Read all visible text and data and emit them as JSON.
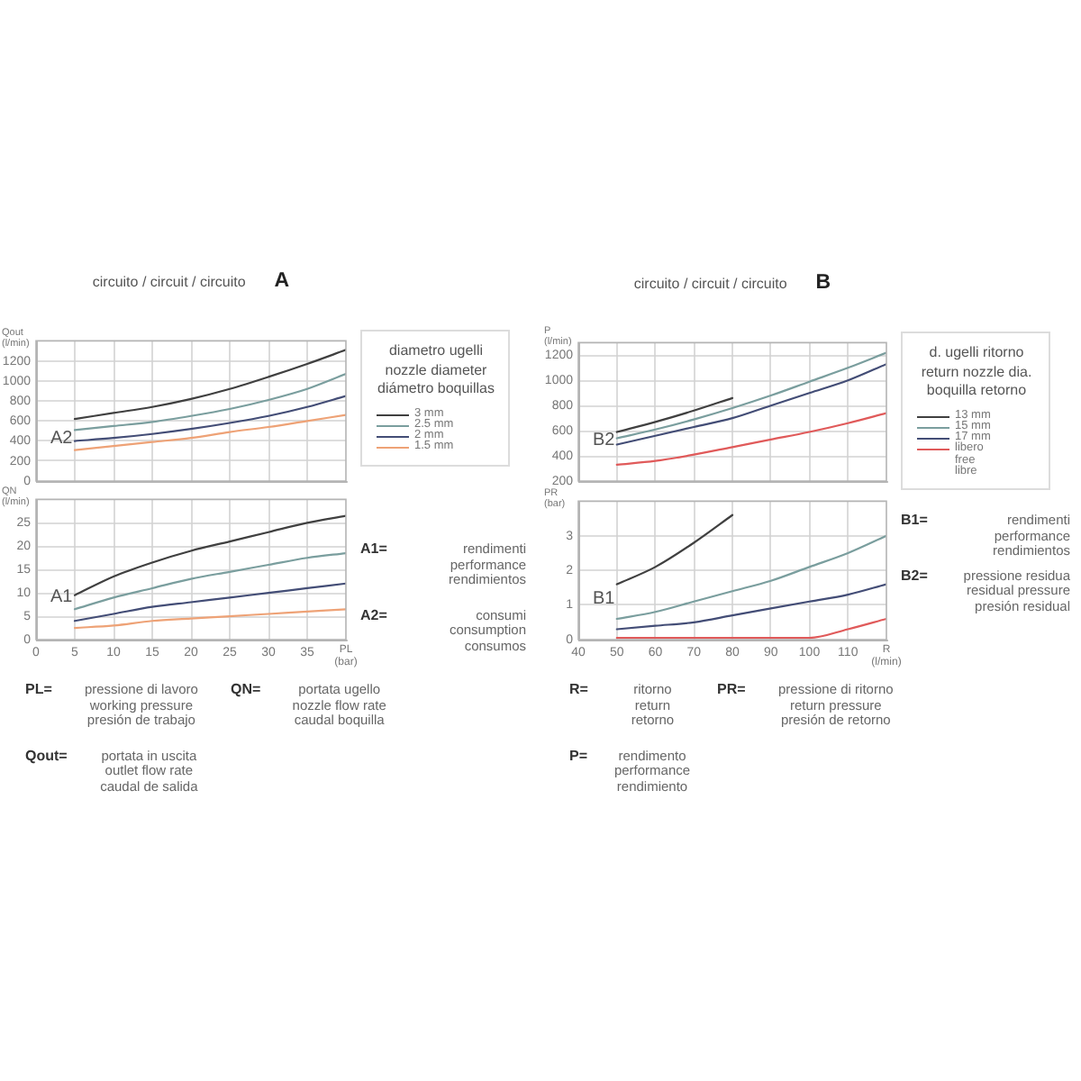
{
  "chart_data": [
    {
      "type": "line",
      "title": "circuito / circuit / circuito",
      "subtitle": "A",
      "ylabel": "Qout (l/min)",
      "legend_title": "diametro ugelli\nnozzle diameter\ndiámetro boquillas",
      "annotations": [
        "A2"
      ],
      "x": [
        5,
        10,
        15,
        20,
        25,
        30,
        35,
        40
      ],
      "series": [
        {
          "name": "3 mm",
          "color": "#404040",
          "values": [
            620,
            680,
            740,
            820,
            920,
            1040,
            1170,
            1310
          ]
        },
        {
          "name": "2.5 mm",
          "color": "#7a9e9e",
          "values": [
            510,
            550,
            590,
            650,
            720,
            810,
            920,
            1070
          ]
        },
        {
          "name": "2 mm",
          "color": "#434d76",
          "values": [
            400,
            430,
            470,
            520,
            580,
            650,
            740,
            850
          ]
        },
        {
          "name": "1.5 mm",
          "color": "#eea276",
          "values": [
            310,
            350,
            390,
            430,
            490,
            540,
            600,
            660
          ]
        }
      ],
      "xlim": [
        0,
        40
      ],
      "ylim": [
        0,
        1400
      ],
      "xticks": [
        0,
        5,
        10,
        15,
        20,
        25,
        30,
        35
      ],
      "yticks": [
        0,
        200,
        400,
        600,
        800,
        1000,
        1200
      ],
      "tick_labels": "y",
      "grid": true,
      "legend": "right"
    },
    {
      "type": "line",
      "xlabel": "PL (bar)",
      "ylabel": "QN (l/min)",
      "annotations": [
        "A1"
      ],
      "x": [
        5,
        10,
        15,
        20,
        25,
        30,
        35,
        40
      ],
      "series": [
        {
          "color": "#404040",
          "values": [
            9.5,
            13.5,
            16.5,
            19,
            21,
            23,
            25,
            26.5
          ]
        },
        {
          "color": "#7a9e9e",
          "values": [
            6.5,
            9,
            11,
            13,
            14.5,
            16,
            17.5,
            18.5
          ]
        },
        {
          "color": "#434d76",
          "values": [
            4,
            5.5,
            7,
            8,
            9,
            10,
            11,
            12
          ]
        },
        {
          "color": "#eea276",
          "values": [
            2.5,
            3,
            4,
            4.5,
            5,
            5.5,
            6,
            6.5
          ]
        }
      ],
      "xlim": [
        0,
        40
      ],
      "ylim": [
        0,
        30
      ],
      "xticks": [
        0,
        5,
        10,
        15,
        20,
        25,
        30,
        35
      ],
      "yticks": [
        0,
        5,
        10,
        15,
        20,
        25
      ],
      "grid": true
    },
    {
      "type": "line",
      "title": "circuito / circuit / circuito",
      "subtitle": "B",
      "ylabel": "P (l/min)",
      "legend_title": "d. ugelli ritorno\nreturn nozzle dia.\nboquilla retorno",
      "annotations": [
        "B2"
      ],
      "x": [
        50,
        60,
        70,
        80,
        90,
        100,
        110,
        120
      ],
      "series": [
        {
          "name": "13 mm",
          "color": "#404040",
          "x": [
            50,
            60,
            70,
            80
          ],
          "values": [
            590,
            670,
            760,
            860
          ]
        },
        {
          "name": "15 mm",
          "color": "#7a9e9e",
          "values": [
            540,
            610,
            690,
            780,
            880,
            990,
            1100,
            1220
          ]
        },
        {
          "name": "17 mm",
          "color": "#434d76",
          "values": [
            490,
            560,
            630,
            700,
            800,
            900,
            1000,
            1130
          ]
        },
        {
          "name": "libero\nfree\nlibre",
          "color": "#e05a5a",
          "values": [
            330,
            360,
            410,
            470,
            530,
            590,
            660,
            740
          ]
        }
      ],
      "xlim": [
        40,
        120
      ],
      "ylim": [
        200,
        1300
      ],
      "xticks": [
        40,
        50,
        60,
        70,
        80,
        90,
        100,
        110
      ],
      "yticks": [
        200,
        400,
        600,
        800,
        1000,
        1200
      ],
      "tick_labels": "y",
      "grid": true,
      "legend": "right"
    },
    {
      "type": "line",
      "xlabel": "R (l/min)",
      "ylabel": "PR (bar)",
      "annotations": [
        "B1"
      ],
      "x": [
        50,
        60,
        70,
        80,
        90,
        100,
        110,
        120
      ],
      "series": [
        {
          "color": "#404040",
          "x": [
            50,
            60,
            70,
            80
          ],
          "values": [
            1.6,
            2.1,
            2.8,
            3.6
          ]
        },
        {
          "color": "#7a9e9e",
          "values": [
            0.6,
            0.8,
            1.1,
            1.4,
            1.7,
            2.1,
            2.5,
            3
          ]
        },
        {
          "color": "#434d76",
          "values": [
            0.3,
            0.4,
            0.5,
            0.7,
            0.9,
            1.1,
            1.3,
            1.6
          ]
        },
        {
          "color": "#e05a5a",
          "values": [
            0.05,
            0.05,
            0.05,
            0.05,
            0.05,
            0.05,
            0.3,
            0.6
          ]
        }
      ],
      "xlim": [
        40,
        120
      ],
      "ylim": [
        0,
        4
      ],
      "xticks": [
        40,
        50,
        60,
        70,
        80,
        90,
        100,
        110
      ],
      "yticks": [
        0,
        1,
        2,
        3
      ],
      "grid": true
    },
    {
      "type": "other",
      "annotations": [
        "A1=\nrendimenti\nperformance\nrendimientos",
        "A2=\nconsumi\nconsumption\nconsumos"
      ]
    },
    {
      "type": "other",
      "annotations": [
        "PL=\npressione di lavoro\nworking pressure\npresión de trabajo",
        "QN=\nportata ugello\nnozzle flow rate\ncaudal boquilla",
        "Qout=\nportata in uscita\noutlet flow rate\ncaudal de salida"
      ]
    },
    {
      "type": "other",
      "annotations": [
        "B1=\nrendimenti\nperformance\nrendimientos",
        "B2=\npressione residua\nresidual pressure\npresión residual"
      ]
    },
    {
      "type": "other",
      "annotations": [
        "R=\nritorno\nreturn\nretorno",
        "PR=\npressione di ritorno\nreturn pressure\npresión de retorno",
        "P=\nrendimento\nperformance\nrendimiento"
      ]
    }
  ]
}
